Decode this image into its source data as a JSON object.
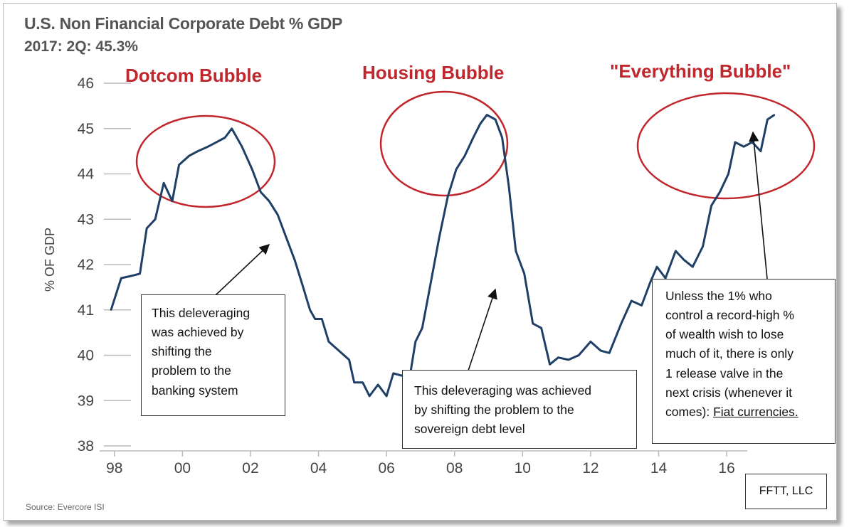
{
  "header": {
    "title": "U.S. Non Financial Corporate Debt % GDP",
    "subtitle": "2017: 2Q: 45.3%"
  },
  "source": "Source: Evercore ISI",
  "credit": "FFTT, LLC",
  "bubbles": [
    {
      "label": "Dotcom Bubble"
    },
    {
      "label": "Housing Bubble"
    },
    {
      "label": "\"Everything Bubble\""
    }
  ],
  "annotations": {
    "box1": [
      "This deleveraging",
      "was achieved by",
      "shifting the",
      "problem to the",
      "banking system"
    ],
    "box2": [
      "This deleveraging was achieved",
      "by shifting the problem to the",
      "sovereign debt level"
    ],
    "box3": [
      "Unless the 1% who",
      "control a record-high %",
      "of wealth wish to lose",
      "much of it, there is only",
      "1 release valve in the",
      "next crisis (whenever it",
      "comes): "
    ],
    "box3_underlined": "Fiat currencies."
  },
  "colors": {
    "line": "#1f3f66",
    "bubble": "#c0262c"
  },
  "chart_data": {
    "type": "line",
    "title": "U.S. Non Financial Corporate Debt % GDP",
    "subtitle": "2017: 2Q: 45.3%",
    "ylabel": "% OF GDP",
    "xlabel": "",
    "ylim": [
      38,
      46
    ],
    "xlim": [
      1997.75,
      2017.5
    ],
    "yticks": [
      38,
      39,
      40,
      41,
      42,
      43,
      44,
      45,
      46
    ],
    "xticks": [
      {
        "value": 1998,
        "label": "98"
      },
      {
        "value": 2000,
        "label": "00"
      },
      {
        "value": 2002,
        "label": "02"
      },
      {
        "value": 2004,
        "label": "04"
      },
      {
        "value": 2006,
        "label": "06"
      },
      {
        "value": 2008,
        "label": "08"
      },
      {
        "value": 2010,
        "label": "10"
      },
      {
        "value": 2012,
        "label": "12"
      },
      {
        "value": 2014,
        "label": "14"
      },
      {
        "value": 2016,
        "label": "16"
      }
    ],
    "grid": false,
    "series": [
      {
        "points": [
          [
            1997.9,
            41.0
          ],
          [
            1998.2,
            41.7
          ],
          [
            1998.5,
            41.75
          ],
          [
            1998.75,
            41.8
          ],
          [
            1998.95,
            42.8
          ],
          [
            1999.2,
            43.0
          ],
          [
            1999.45,
            43.8
          ],
          [
            1999.7,
            43.4
          ],
          [
            1999.9,
            44.2
          ],
          [
            2000.2,
            44.4
          ],
          [
            2000.45,
            44.5
          ],
          [
            2000.75,
            44.6
          ],
          [
            2001.0,
            44.7
          ],
          [
            2001.25,
            44.8
          ],
          [
            2001.45,
            45.0
          ],
          [
            2001.75,
            44.6
          ],
          [
            2002.05,
            44.1
          ],
          [
            2002.3,
            43.6
          ],
          [
            2002.55,
            43.4
          ],
          [
            2002.8,
            43.1
          ],
          [
            2003.05,
            42.6
          ],
          [
            2003.3,
            42.1
          ],
          [
            2003.55,
            41.5
          ],
          [
            2003.75,
            41.0
          ],
          [
            2003.9,
            40.8
          ],
          [
            2004.1,
            40.8
          ],
          [
            2004.3,
            40.3
          ],
          [
            2004.6,
            40.1
          ],
          [
            2004.9,
            39.9
          ],
          [
            2005.05,
            39.4
          ],
          [
            2005.3,
            39.4
          ],
          [
            2005.5,
            39.1
          ],
          [
            2005.75,
            39.35
          ],
          [
            2006.0,
            39.1
          ],
          [
            2006.2,
            39.6
          ],
          [
            2006.45,
            39.55
          ],
          [
            2006.7,
            39.6
          ],
          [
            2006.85,
            40.3
          ],
          [
            2007.05,
            40.6
          ],
          [
            2007.3,
            41.6
          ],
          [
            2007.55,
            42.6
          ],
          [
            2007.8,
            43.5
          ],
          [
            2008.05,
            44.1
          ],
          [
            2008.3,
            44.4
          ],
          [
            2008.55,
            44.8
          ],
          [
            2008.75,
            45.1
          ],
          [
            2008.95,
            45.3
          ],
          [
            2009.2,
            45.2
          ],
          [
            2009.4,
            44.8
          ],
          [
            2009.6,
            43.7
          ],
          [
            2009.8,
            42.3
          ],
          [
            2010.05,
            41.8
          ],
          [
            2010.3,
            40.7
          ],
          [
            2010.55,
            40.6
          ],
          [
            2010.8,
            39.8
          ],
          [
            2011.05,
            39.95
          ],
          [
            2011.35,
            39.9
          ],
          [
            2011.65,
            40.0
          ],
          [
            2012.0,
            40.3
          ],
          [
            2012.3,
            40.1
          ],
          [
            2012.55,
            40.05
          ],
          [
            2012.9,
            40.7
          ],
          [
            2013.2,
            41.2
          ],
          [
            2013.5,
            41.1
          ],
          [
            2013.75,
            41.6
          ],
          [
            2013.95,
            41.95
          ],
          [
            2014.2,
            41.7
          ],
          [
            2014.5,
            42.3
          ],
          [
            2014.75,
            42.1
          ],
          [
            2015.0,
            41.95
          ],
          [
            2015.3,
            42.4
          ],
          [
            2015.55,
            43.3
          ],
          [
            2015.8,
            43.6
          ],
          [
            2016.05,
            44.0
          ],
          [
            2016.25,
            44.7
          ],
          [
            2016.5,
            44.6
          ],
          [
            2016.75,
            44.7
          ],
          [
            2017.0,
            44.5
          ],
          [
            2017.2,
            45.2
          ],
          [
            2017.4,
            45.3
          ]
        ]
      }
    ]
  }
}
